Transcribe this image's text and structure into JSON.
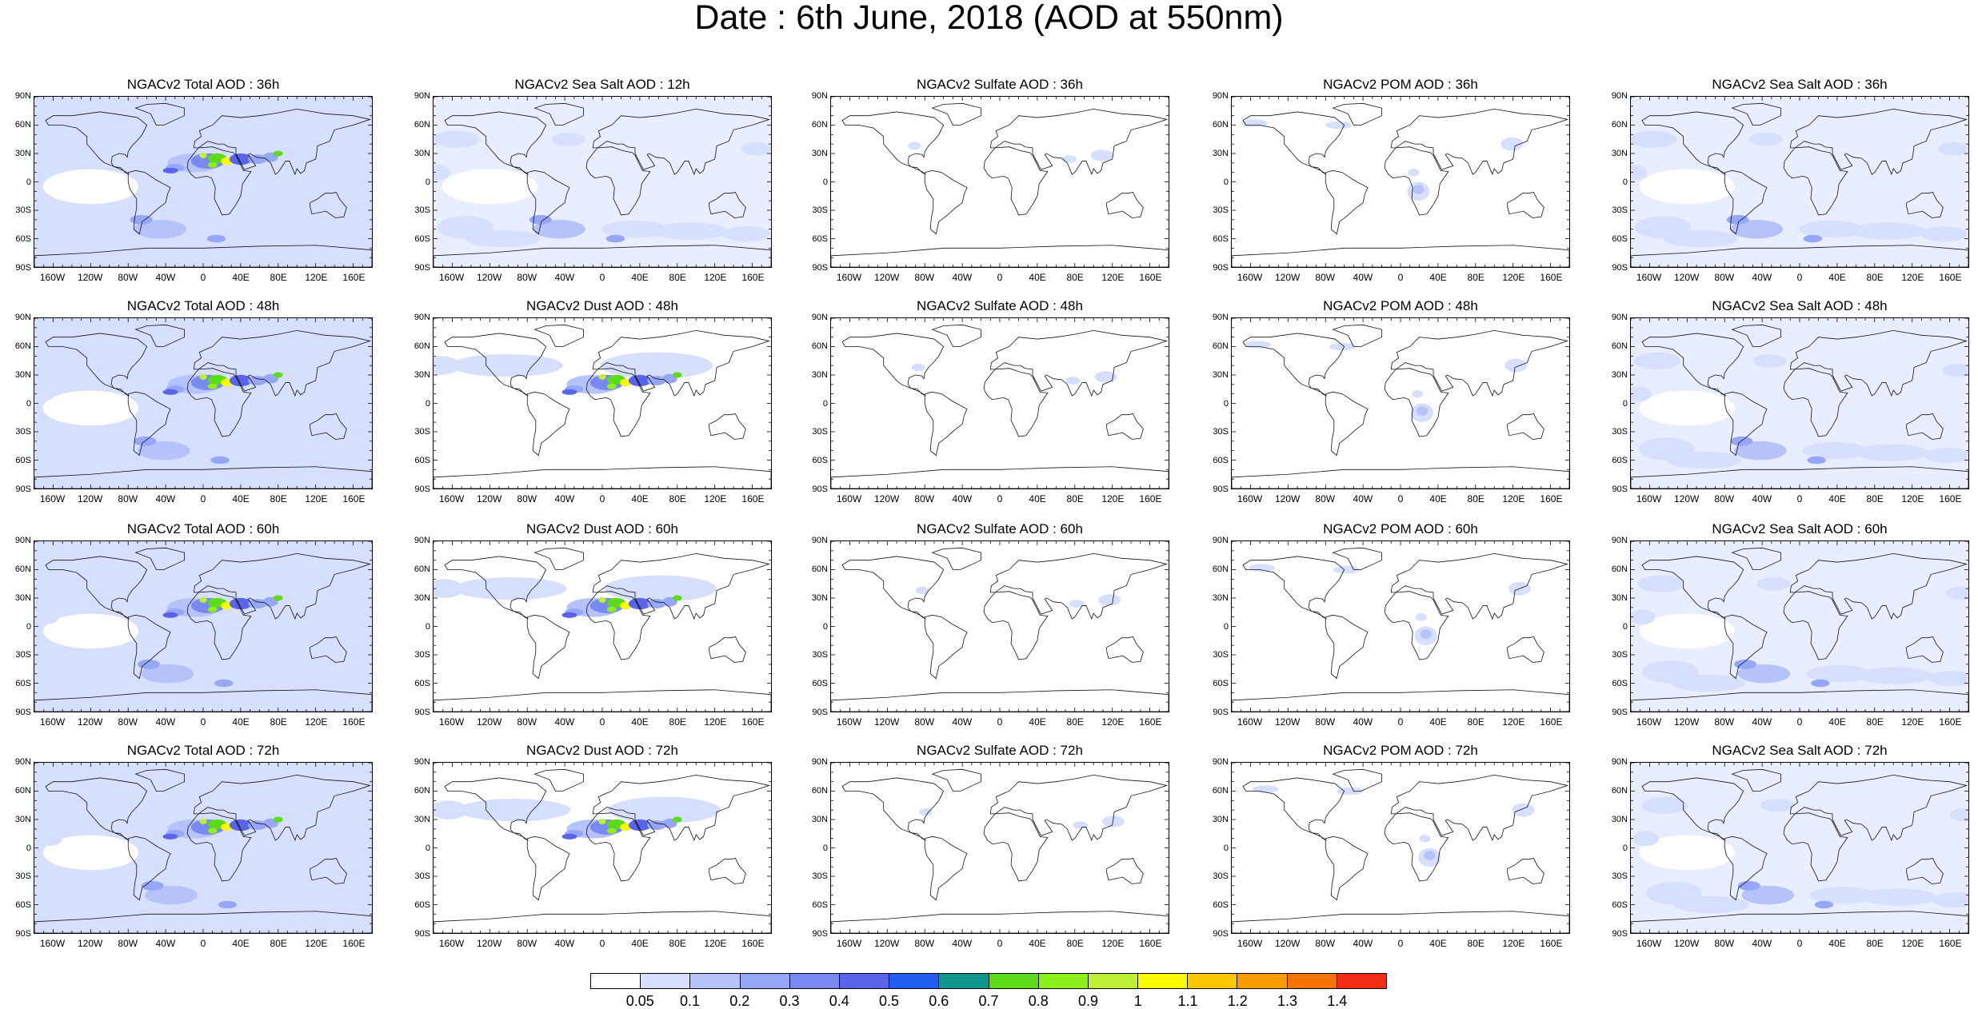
{
  "title": "Date : 6th June, 2018 (AOD at 550nm)",
  "panel_titles": [
    [
      "NGACv2 Total AOD : 36h",
      "NGACv2 Sea Salt  AOD : 12h",
      "NGACv2 Sulfate AOD : 36h",
      "NGACv2 POM AOD : 36h",
      "NGACv2 Sea Salt AOD : 36h"
    ],
    [
      "NGACv2 Total AOD : 48h",
      "NGACv2 Dust AOD : 48h",
      "NGACv2 Sulfate AOD : 48h",
      "NGACv2 POM AOD : 48h",
      "NGACv2 Sea Salt AOD : 48h"
    ],
    [
      "NGACv2 Total AOD : 60h",
      "NGACv2 Dust AOD : 60h",
      "NGACv2 Sulfate AOD : 60h",
      "NGACv2 POM AOD : 60h",
      "NGACv2 Sea Salt AOD : 60h"
    ],
    [
      "NGACv2 Total AOD : 72h",
      "NGACv2 Dust AOD : 72h",
      "NGACv2 Sulfate AOD : 72h",
      "NGACv2 POM AOD : 72h",
      "NGACv2 Sea Salt  AOD : 72h"
    ]
  ],
  "lat_labels": [
    "90N",
    "60N",
    "30N",
    "0",
    "30S",
    "60S",
    "90S"
  ],
  "lon_labels": [
    "160W",
    "120W",
    "80W",
    "40W",
    "0",
    "40E",
    "80E",
    "120E",
    "160E"
  ],
  "colorbar": {
    "levels": [
      "0.05",
      "0.1",
      "0.2",
      "0.3",
      "0.4",
      "0.5",
      "0.6",
      "0.7",
      "0.8",
      "0.9",
      "1",
      "1.1",
      "1.2",
      "1.3",
      "1.4"
    ],
    "colors": [
      "#ffffff",
      "#d6dffe",
      "#b6c3fb",
      "#96a7f8",
      "#7a88f2",
      "#5a64ea",
      "#1f5ef0",
      "#11968f",
      "#5bdb1a",
      "#8cf01a",
      "#c0f035",
      "#fbfb00",
      "#fbc800",
      "#f99c00",
      "#f77300",
      "#f32e14"
    ]
  },
  "panel_types": [
    [
      "total",
      "seasalt",
      "sulfate",
      "pom",
      "seasalt"
    ],
    [
      "total",
      "dust",
      "sulfate",
      "pom",
      "seasalt"
    ],
    [
      "total",
      "dust",
      "sulfate",
      "pom",
      "seasalt"
    ],
    [
      "total",
      "dust",
      "sulfate",
      "pom",
      "seasalt"
    ]
  ]
}
